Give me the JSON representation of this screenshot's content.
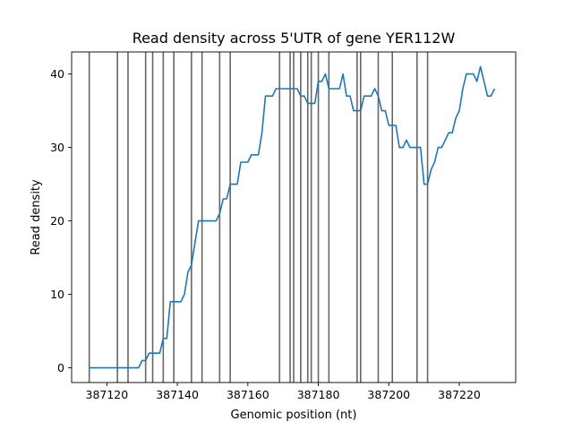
{
  "chart_data": {
    "type": "line",
    "title": "Read density across 5'UTR of gene YER112W",
    "xlabel": "Genomic position (nt)",
    "ylabel": "Read density",
    "xlim": [
      387110,
      387236
    ],
    "ylim": [
      -2,
      43
    ],
    "xticks": [
      387120,
      387140,
      387160,
      387180,
      387200,
      387220
    ],
    "yticks": [
      0,
      10,
      20,
      30,
      40
    ],
    "xtick_labels": [
      "387120",
      "387140",
      "387160",
      "387180",
      "387200",
      "387220"
    ],
    "ytick_labels": [
      "0",
      "10",
      "20",
      "30",
      "40"
    ],
    "grid": false,
    "line_color": "#1f77b4",
    "vline_color": "#666666",
    "vlines": [
      387115,
      387123,
      387126,
      387131,
      387133,
      387136,
      387139,
      387144,
      387147,
      387152,
      387155,
      387169,
      387172,
      387173,
      387175,
      387177,
      387178,
      387180,
      387183,
      387191,
      387192,
      387197,
      387201,
      387208,
      387211
    ],
    "series": [
      {
        "x": [
          387115,
          387116,
          387117,
          387118,
          387119,
          387120,
          387121,
          387122,
          387123,
          387124,
          387125,
          387126,
          387127,
          387128,
          387129,
          387130,
          387131,
          387132,
          387133,
          387134,
          387135,
          387136,
          387137,
          387138,
          387139,
          387140,
          387141,
          387142,
          387143,
          387144,
          387145,
          387146,
          387147,
          387148,
          387149,
          387150,
          387151,
          387152,
          387153,
          387154,
          387155,
          387156,
          387157,
          387158,
          387159,
          387160,
          387161,
          387162,
          387163,
          387164,
          387165,
          387166,
          387167,
          387168,
          387169,
          387170,
          387171,
          387172,
          387173,
          387174,
          387175,
          387176,
          387177,
          387178,
          387179,
          387180,
          387181,
          387182,
          387183,
          387184,
          387185,
          387186,
          387187,
          387188,
          387189,
          387190,
          387191,
          387192,
          387193,
          387194,
          387195,
          387196,
          387197,
          387198,
          387199,
          387200,
          387201,
          387202,
          387203,
          387204,
          387205,
          387206,
          387207,
          387208,
          387209,
          387210,
          387211,
          387212,
          387213,
          387214,
          387215,
          387216,
          387217,
          387218,
          387219,
          387220,
          387221,
          387222,
          387223,
          387224,
          387225,
          387226,
          387227,
          387228,
          387229,
          387230
        ],
        "values": [
          0,
          0,
          0,
          0,
          0,
          0,
          0,
          0,
          0,
          0,
          0,
          0,
          0,
          0,
          0,
          1,
          1,
          2,
          2,
          2,
          2,
          4,
          4,
          9,
          9,
          9,
          9,
          10,
          13,
          14,
          17,
          20,
          20,
          20,
          20,
          20,
          20,
          21,
          23,
          23,
          25,
          25,
          25,
          28,
          28,
          28,
          29,
          29,
          29,
          32,
          37,
          37,
          37,
          38,
          38,
          38,
          38,
          38,
          38,
          38,
          37,
          37,
          36,
          36,
          36,
          39,
          39,
          40,
          38,
          38,
          38,
          38,
          40,
          37,
          37,
          35,
          35,
          35,
          37,
          37,
          37,
          38,
          37,
          35,
          35,
          33,
          33,
          33,
          30,
          30,
          31,
          30,
          30,
          30,
          30,
          25,
          25,
          27,
          28,
          30,
          30,
          31,
          32,
          32,
          34,
          35,
          38,
          40,
          40,
          40,
          39,
          41,
          39,
          37,
          37,
          38
        ]
      }
    ]
  }
}
